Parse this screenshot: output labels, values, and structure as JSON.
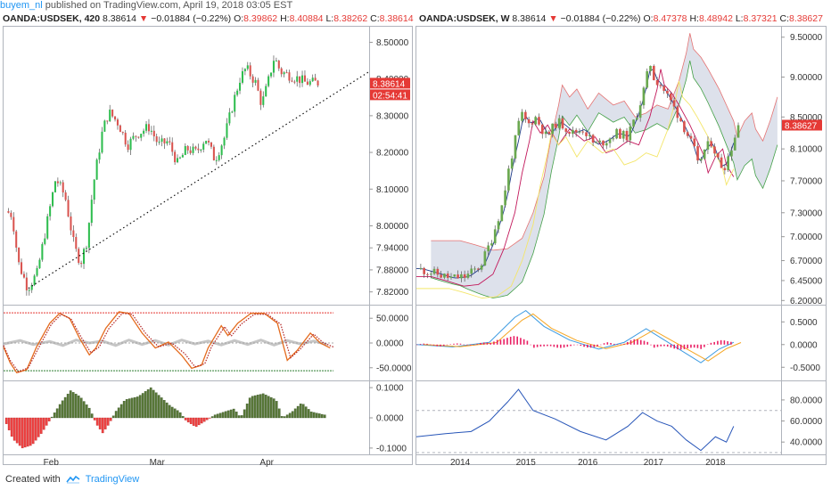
{
  "header": {
    "user": "buyem_nl",
    "published": "published on TradingView.com, April 19, 2018 03:05 EST"
  },
  "legend_left": {
    "symbol": "OANDA:USDSEK, 420",
    "last": "8.38614",
    "change": "−0.01884 (−0.22%)",
    "o_label": "O:",
    "o": "8.39862",
    "h_label": "H:",
    "h": "8.40884",
    "l_label": "L:",
    "l": "8.38262",
    "c_label": "C:",
    "c": "8.38614"
  },
  "legend_right": {
    "symbol": "OANDA:USDSEK, W",
    "last": "8.38614",
    "change": "−0.01884 (−0.22%)",
    "o_label": "O:",
    "o": "8.47378",
    "h_label": "H:",
    "h": "8.48942",
    "l_label": "L:",
    "l": "8.37321",
    "c_label": "C:",
    "c": "8.38627"
  },
  "footer": {
    "created_with": "Created with",
    "brand": "TradingView"
  },
  "colors": {
    "up": "#6aa84f",
    "down": "#d9534f",
    "up_bright": "#2ebd4e",
    "axis_text": "#333333",
    "grid": "#e6eaf0",
    "price_tag": "#e53935",
    "timer_tag": "#e53935",
    "stoch_d": "#e46b1e",
    "stoch_k": "#b22222",
    "stoch_red_line": "#e53935",
    "stoch_green_line": "#2e7d32",
    "hist_pos": "#5a7a3a",
    "hist_neg": "#ef4444",
    "macd_blue": "#3b9ae1",
    "macd_orange": "#f5a623",
    "macd_hist": "#e91e63",
    "rsi": "#2755b8",
    "kumo": "#d5d9e6",
    "tenkan": "#1e3a8a",
    "kijun": "#c2185b",
    "senkouA": "#43a047",
    "senkouB": "#e57373",
    "chikou": "#f4e66a"
  },
  "chart_data": [
    {
      "type": "candlestick",
      "panel": "left-price",
      "symbol": "OANDA:USDSEK",
      "interval": "420",
      "ylim": [
        7.79,
        8.54
      ],
      "yticks": [
        "8.50000",
        "8.40000",
        "8.30000",
        "8.20000",
        "8.10000",
        "8.00000",
        "7.94000",
        "7.88000",
        "7.82000"
      ],
      "xticks": [
        "Feb",
        "Mar",
        "Apr"
      ],
      "last_price_label": "8.38614",
      "timer_label": "02:54:41",
      "trendline": {
        "from": [
          0.068,
          7.83
        ],
        "to": [
          1.0,
          8.42
        ],
        "style": "dotted"
      },
      "path": [
        [
          0,
          8.04
        ],
        [
          0.02,
          8.03
        ],
        [
          0.04,
          7.9
        ],
        [
          0.07,
          7.83
        ],
        [
          0.1,
          7.87
        ],
        [
          0.13,
          8.0
        ],
        [
          0.16,
          8.13
        ],
        [
          0.19,
          8.08
        ],
        [
          0.22,
          7.94
        ],
        [
          0.24,
          7.9
        ],
        [
          0.26,
          7.96
        ],
        [
          0.28,
          8.11
        ],
        [
          0.31,
          8.26
        ],
        [
          0.33,
          8.31
        ],
        [
          0.36,
          8.28
        ],
        [
          0.39,
          8.22
        ],
        [
          0.42,
          8.25
        ],
        [
          0.46,
          8.27
        ],
        [
          0.49,
          8.22
        ],
        [
          0.52,
          8.23
        ],
        [
          0.55,
          8.17
        ],
        [
          0.58,
          8.21
        ],
        [
          0.61,
          8.2
        ],
        [
          0.64,
          8.24
        ],
        [
          0.67,
          8.18
        ],
        [
          0.7,
          8.24
        ],
        [
          0.73,
          8.34
        ],
        [
          0.75,
          8.4
        ],
        [
          0.77,
          8.43
        ],
        [
          0.8,
          8.39
        ],
        [
          0.82,
          8.33
        ],
        [
          0.84,
          8.39
        ],
        [
          0.86,
          8.46
        ],
        [
          0.88,
          8.42
        ],
        [
          0.91,
          8.41
        ],
        [
          0.94,
          8.4
        ],
        [
          0.96,
          8.39
        ]
      ]
    },
    {
      "type": "line",
      "panel": "left-stochastic",
      "ylim": [
        -72,
        72
      ],
      "yticks": [
        "50.0000",
        "0.0000",
        "-50.0000"
      ],
      "levels": [
        61,
        -56
      ],
      "k": [
        [
          0,
          -8
        ],
        [
          0.02,
          -40
        ],
        [
          0.04,
          -60
        ],
        [
          0.07,
          -54
        ],
        [
          0.1,
          -8
        ],
        [
          0.14,
          40
        ],
        [
          0.17,
          60
        ],
        [
          0.2,
          50
        ],
        [
          0.23,
          10
        ],
        [
          0.26,
          -24
        ],
        [
          0.28,
          -10
        ],
        [
          0.31,
          30
        ],
        [
          0.35,
          63
        ],
        [
          0.38,
          60
        ],
        [
          0.42,
          20
        ],
        [
          0.46,
          -10
        ],
        [
          0.5,
          2
        ],
        [
          0.54,
          -25
        ],
        [
          0.57,
          -51
        ],
        [
          0.6,
          -45
        ],
        [
          0.62,
          -10
        ],
        [
          0.66,
          35
        ],
        [
          0.68,
          15
        ],
        [
          0.71,
          40
        ],
        [
          0.75,
          60
        ],
        [
          0.79,
          60
        ],
        [
          0.83,
          40
        ],
        [
          0.86,
          -35
        ],
        [
          0.89,
          -15
        ],
        [
          0.93,
          20
        ],
        [
          0.96,
          0
        ],
        [
          0.99,
          -10
        ]
      ],
      "d": [
        [
          0,
          -5
        ],
        [
          0.02,
          -35
        ],
        [
          0.045,
          -58
        ],
        [
          0.075,
          -50
        ],
        [
          0.11,
          -5
        ],
        [
          0.145,
          38
        ],
        [
          0.175,
          58
        ],
        [
          0.205,
          48
        ],
        [
          0.235,
          12
        ],
        [
          0.265,
          -20
        ],
        [
          0.29,
          -8
        ],
        [
          0.32,
          30
        ],
        [
          0.36,
          60
        ],
        [
          0.39,
          58
        ],
        [
          0.43,
          20
        ],
        [
          0.47,
          -8
        ],
        [
          0.51,
          0
        ],
        [
          0.55,
          -22
        ],
        [
          0.58,
          -48
        ],
        [
          0.61,
          -42
        ],
        [
          0.63,
          -8
        ],
        [
          0.67,
          33
        ],
        [
          0.69,
          14
        ],
        [
          0.72,
          38
        ],
        [
          0.76,
          58
        ],
        [
          0.8,
          58
        ],
        [
          0.84,
          38
        ],
        [
          0.87,
          -30
        ],
        [
          0.9,
          -12
        ],
        [
          0.94,
          18
        ],
        [
          0.97,
          0
        ],
        [
          1.0,
          -8
        ]
      ],
      "gray": [
        [
          0,
          -2
        ],
        [
          0.05,
          5
        ],
        [
          0.09,
          -3
        ],
        [
          0.14,
          3
        ],
        [
          0.18,
          -5
        ],
        [
          0.22,
          6
        ],
        [
          0.26,
          0
        ],
        [
          0.3,
          4
        ],
        [
          0.34,
          -5
        ],
        [
          0.38,
          6
        ],
        [
          0.42,
          -3
        ],
        [
          0.46,
          5
        ],
        [
          0.5,
          -4
        ],
        [
          0.54,
          6
        ],
        [
          0.58,
          -2
        ],
        [
          0.62,
          4
        ],
        [
          0.66,
          -4
        ],
        [
          0.7,
          5
        ],
        [
          0.74,
          -3
        ],
        [
          0.78,
          6
        ],
        [
          0.82,
          -4
        ],
        [
          0.86,
          5
        ],
        [
          0.9,
          -2
        ],
        [
          0.94,
          4
        ],
        [
          0.98,
          -3
        ]
      ]
    },
    {
      "type": "bar",
      "panel": "left-histogram",
      "ylim": [
        -0.115,
        0.115
      ],
      "yticks": [
        "0.1000",
        "0.0000",
        "-0.1000"
      ],
      "profile": [
        [
          0,
          -0.02
        ],
        [
          0.02,
          -0.07
        ],
        [
          0.05,
          -0.1
        ],
        [
          0.08,
          -0.09
        ],
        [
          0.11,
          -0.05
        ],
        [
          0.14,
          0.0
        ],
        [
          0.17,
          0.05
        ],
        [
          0.2,
          0.09
        ],
        [
          0.23,
          0.07
        ],
        [
          0.26,
          0.03
        ],
        [
          0.28,
          -0.02
        ],
        [
          0.3,
          -0.05
        ],
        [
          0.32,
          -0.02
        ],
        [
          0.34,
          0.02
        ],
        [
          0.37,
          0.06
        ],
        [
          0.41,
          0.07
        ],
        [
          0.45,
          0.1
        ],
        [
          0.48,
          0.07
        ],
        [
          0.51,
          0.04
        ],
        [
          0.54,
          0.02
        ],
        [
          0.56,
          -0.01
        ],
        [
          0.59,
          -0.03
        ],
        [
          0.62,
          -0.01
        ],
        [
          0.65,
          0.01
        ],
        [
          0.68,
          0.02
        ],
        [
          0.71,
          0.03
        ],
        [
          0.73,
          0.0
        ],
        [
          0.76,
          0.07
        ],
        [
          0.8,
          0.08
        ],
        [
          0.84,
          0.06
        ],
        [
          0.86,
          0.0
        ],
        [
          0.89,
          0.02
        ],
        [
          0.92,
          0.05
        ],
        [
          0.95,
          0.02
        ],
        [
          0.99,
          0.01
        ]
      ]
    },
    {
      "type": "candlestick",
      "panel": "right-price",
      "symbol": "OANDA:USDSEK",
      "interval": "W",
      "ylim": [
        6.17,
        9.62
      ],
      "yticks": [
        "9.50000",
        "9.00000",
        "8.50000",
        "8.10000",
        "7.70000",
        "7.30000",
        "7.00000",
        "6.70000",
        "6.45000",
        "6.20000"
      ],
      "xticks": [
        "2014",
        "2015",
        "2016",
        "2017",
        "2018"
      ],
      "last_price_label": "8.38627",
      "path": [
        [
          0,
          6.6
        ],
        [
          0.04,
          6.55
        ],
        [
          0.09,
          6.48
        ],
        [
          0.13,
          6.5
        ],
        [
          0.17,
          6.63
        ],
        [
          0.2,
          6.95
        ],
        [
          0.23,
          7.4
        ],
        [
          0.25,
          7.9
        ],
        [
          0.27,
          8.3
        ],
        [
          0.28,
          8.55
        ],
        [
          0.3,
          8.4
        ],
        [
          0.32,
          8.5
        ],
        [
          0.35,
          8.25
        ],
        [
          0.38,
          8.45
        ],
        [
          0.42,
          8.3
        ],
        [
          0.45,
          8.35
        ],
        [
          0.48,
          8.15
        ],
        [
          0.51,
          8.2
        ],
        [
          0.54,
          8.3
        ],
        [
          0.57,
          8.25
        ],
        [
          0.6,
          8.6
        ],
        [
          0.62,
          8.95
        ],
        [
          0.63,
          9.2
        ],
        [
          0.64,
          9.0
        ],
        [
          0.66,
          8.9
        ],
        [
          0.68,
          8.75
        ],
        [
          0.71,
          8.5
        ],
        [
          0.73,
          8.3
        ],
        [
          0.75,
          8.1
        ],
        [
          0.76,
          7.9
        ],
        [
          0.78,
          8.1
        ],
        [
          0.8,
          8.2
        ],
        [
          0.81,
          8.0
        ],
        [
          0.83,
          7.85
        ],
        [
          0.85,
          8.1
        ],
        [
          0.87,
          8.4
        ]
      ]
    },
    {
      "type": "line",
      "panel": "right-macd",
      "ylim": [
        -0.75,
        0.82
      ],
      "yticks": [
        "0.5000",
        "0.0000",
        "-0.5000"
      ]
    },
    {
      "type": "line",
      "panel": "right-rsi",
      "ylim": [
        30,
        96
      ],
      "yticks": [
        "80.0000",
        "60.0000",
        "40.0000"
      ],
      "levels": [
        70,
        30
      ]
    }
  ]
}
